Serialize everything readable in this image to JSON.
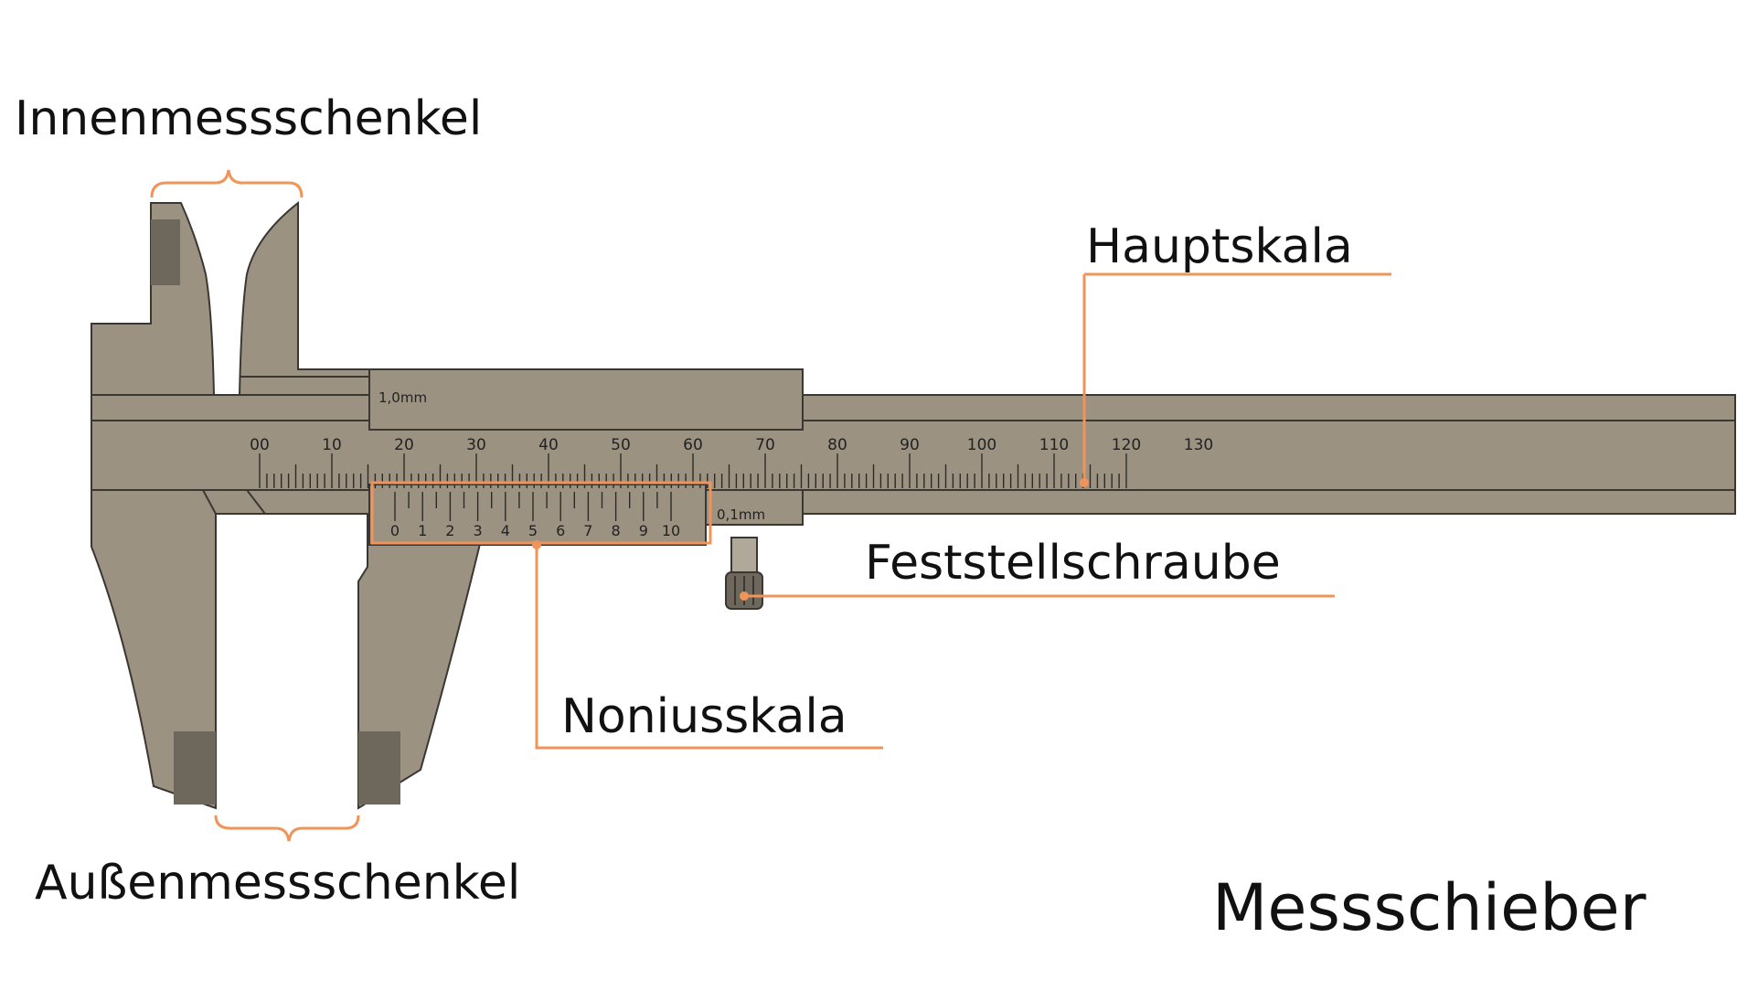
{
  "labels": {
    "inner_jaws": "Innenmessschenkel",
    "outer_jaws": "Außenmessschenkel",
    "main_scale": "Hauptskala",
    "locking_screw": "Feststellschraube",
    "vernier_scale": "Noniusskala",
    "title": "Messschieber"
  },
  "caliper": {
    "upper_resolution": "1,0mm",
    "lower_resolution": "0,1mm",
    "main_scale_numbers": [
      "00",
      "10",
      "20",
      "30",
      "40",
      "50",
      "60",
      "70",
      "80",
      "90",
      "100",
      "110",
      "120",
      "130"
    ],
    "vernier_numbers": [
      "0",
      "1",
      "2",
      "3",
      "4",
      "5",
      "6",
      "7",
      "8",
      "9",
      "10"
    ]
  },
  "colors": {
    "body": "#9c9282",
    "body_dark": "#6e675c",
    "outline": "#3a3732",
    "accent": "#f0945a"
  }
}
